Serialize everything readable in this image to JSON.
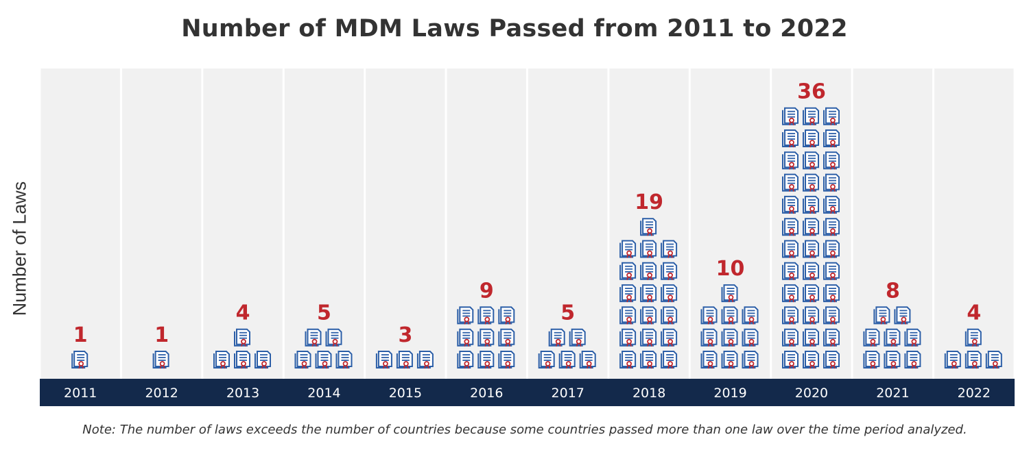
{
  "chart_data": {
    "type": "bar",
    "title": "Number of MDM Laws Passed from 2011 to 2022",
    "xlabel": "",
    "ylabel": "Number of Laws",
    "categories": [
      "2011",
      "2012",
      "2013",
      "2014",
      "2015",
      "2016",
      "2017",
      "2018",
      "2019",
      "2020",
      "2021",
      "2022"
    ],
    "values": [
      1,
      1,
      4,
      5,
      3,
      9,
      5,
      19,
      10,
      36,
      8,
      4
    ],
    "icons_per_row": 3,
    "icon": "law-document-icon",
    "note": "Note: The number of laws exceeds the number of countries because some countries passed more than one law over the time period analyzed.",
    "colors": {
      "panel": "#f1f1f1",
      "axis_band": "#13294b",
      "value_label": "#c0272d",
      "icon_outline": "#2b5ea7",
      "icon_seal": "#c0272d",
      "title": "#333333"
    }
  }
}
